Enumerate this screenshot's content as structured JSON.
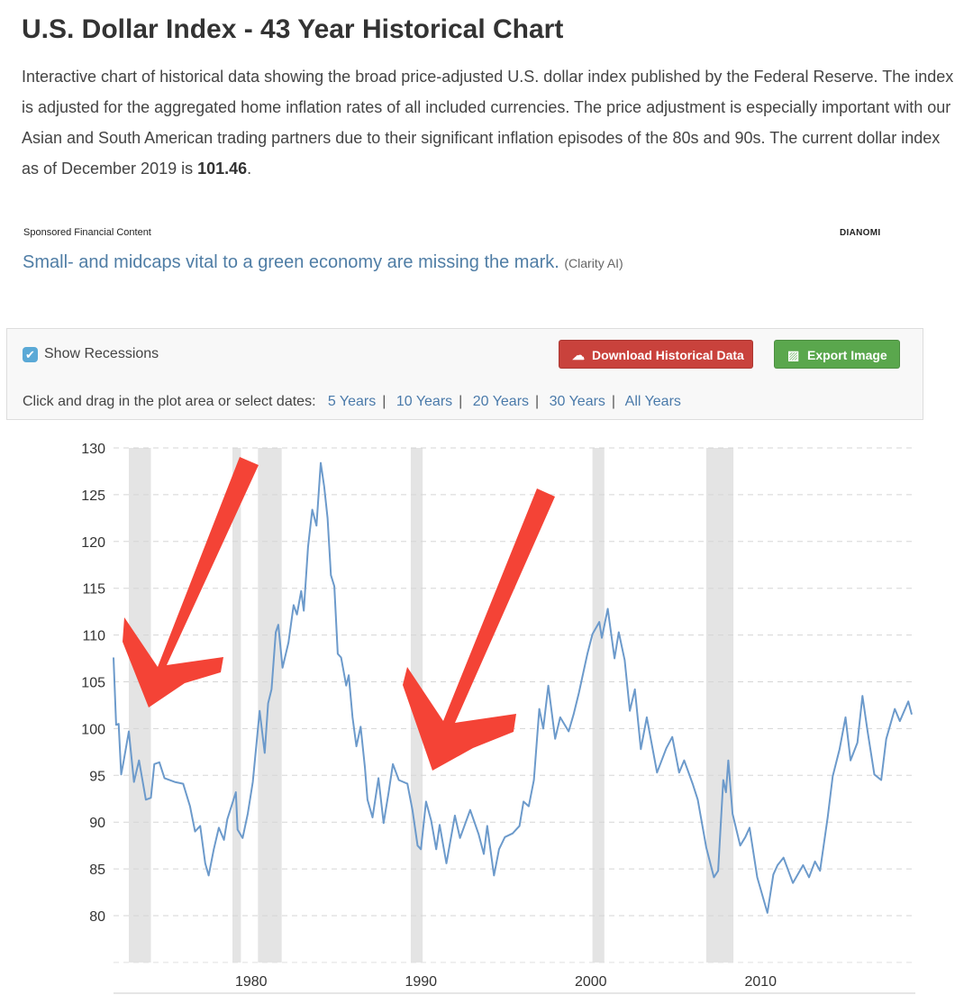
{
  "title": "U.S. Dollar Index - 43 Year Historical Chart",
  "intro": "Interactive chart of historical data showing the broad price-adjusted U.S. dollar index published by the Federal Reserve. The index is adjusted for the aggregated home inflation rates of all included currencies. The price adjustment is especially important with our Asian and South American trading partners due to their significant inflation episodes of the 80s and 90s. The current dollar index as of December 2019 is ",
  "current_value": "101.46",
  "intro_end": ".",
  "sponsored": {
    "label": "Sponsored Financial Content",
    "brand": "Dianomi",
    "headline": "Small- and midcaps vital to a green economy are missing the mark.",
    "source": "(Clarity AI)"
  },
  "controls": {
    "show_recessions": "Show Recessions",
    "show_recessions_checked": true,
    "download": "Download Historical Data",
    "export": "Export Image",
    "range_prompt": "Click and drag in the plot area or select dates:",
    "ranges": [
      "5 Years",
      "10 Years",
      "20 Years",
      "30 Years",
      "All Years"
    ]
  },
  "colors": {
    "line": "#6c9acb",
    "recession": "#e4e4e4",
    "arrow": "#f44336",
    "download": "#c9423c",
    "export": "#5aa74d"
  },
  "chart_data": {
    "type": "line",
    "title": "",
    "xlabel": "",
    "ylabel": "",
    "ylim": [
      75,
      130
    ],
    "xlim": [
      1973,
      2020
    ],
    "yticks": [
      80,
      85,
      90,
      95,
      100,
      105,
      110,
      115,
      120,
      125,
      130
    ],
    "xticks": [
      1980,
      1990,
      2000,
      2010
    ],
    "grid": "horizontal dashed",
    "recessions": [
      [
        1973.9,
        1975.2
      ],
      [
        1980.0,
        1980.5
      ],
      [
        1981.5,
        1982.9
      ],
      [
        1990.5,
        1991.2
      ],
      [
        2001.2,
        2001.9
      ],
      [
        2007.9,
        2009.5
      ]
    ],
    "series": [
      {
        "name": "U.S. Dollar Index",
        "points": [
          [
            1973.0,
            107.6
          ],
          [
            1973.15,
            100.4
          ],
          [
            1973.3,
            100.5
          ],
          [
            1973.45,
            95.1
          ],
          [
            1973.6,
            96.6
          ],
          [
            1973.9,
            99.7
          ],
          [
            1974.2,
            94.3
          ],
          [
            1974.5,
            96.6
          ],
          [
            1974.9,
            92.4
          ],
          [
            1975.2,
            92.6
          ],
          [
            1975.4,
            96.2
          ],
          [
            1975.7,
            96.4
          ],
          [
            1976.0,
            94.7
          ],
          [
            1976.6,
            94.3
          ],
          [
            1977.1,
            94.1
          ],
          [
            1977.5,
            91.7
          ],
          [
            1977.8,
            89.0
          ],
          [
            1978.1,
            89.6
          ],
          [
            1978.4,
            85.6
          ],
          [
            1978.6,
            84.3
          ],
          [
            1978.9,
            87.1
          ],
          [
            1979.2,
            89.4
          ],
          [
            1979.5,
            88.1
          ],
          [
            1979.7,
            90.3
          ],
          [
            1980.2,
            93.2
          ],
          [
            1980.3,
            89.2
          ],
          [
            1980.6,
            88.3
          ],
          [
            1980.9,
            90.9
          ],
          [
            1981.2,
            94.3
          ],
          [
            1981.6,
            101.9
          ],
          [
            1981.9,
            97.4
          ],
          [
            1982.1,
            102.7
          ],
          [
            1982.3,
            104.2
          ],
          [
            1982.55,
            110.3
          ],
          [
            1982.7,
            111.1
          ],
          [
            1982.95,
            106.5
          ],
          [
            1983.3,
            109.2
          ],
          [
            1983.6,
            113.2
          ],
          [
            1983.8,
            112.2
          ],
          [
            1984.05,
            114.7
          ],
          [
            1984.2,
            112.6
          ],
          [
            1984.45,
            119.4
          ],
          [
            1984.7,
            123.4
          ],
          [
            1984.95,
            121.7
          ],
          [
            1985.2,
            128.4
          ],
          [
            1985.4,
            125.9
          ],
          [
            1985.6,
            122.5
          ],
          [
            1985.8,
            116.4
          ],
          [
            1986.0,
            115.2
          ],
          [
            1986.2,
            108.0
          ],
          [
            1986.4,
            107.6
          ],
          [
            1986.7,
            104.6
          ],
          [
            1986.85,
            105.7
          ],
          [
            1987.07,
            101.2
          ],
          [
            1987.3,
            98.1
          ],
          [
            1987.55,
            100.2
          ],
          [
            1987.8,
            95.9
          ],
          [
            1987.95,
            92.4
          ],
          [
            1988.25,
            90.5
          ],
          [
            1988.6,
            94.7
          ],
          [
            1988.9,
            89.9
          ],
          [
            1989.2,
            93.2
          ],
          [
            1989.45,
            96.2
          ],
          [
            1989.8,
            94.5
          ],
          [
            1990.3,
            94.1
          ],
          [
            1990.6,
            91.3
          ],
          [
            1990.9,
            87.5
          ],
          [
            1991.1,
            87.1
          ],
          [
            1991.4,
            92.2
          ],
          [
            1991.7,
            90.2
          ],
          [
            1992.0,
            87.1
          ],
          [
            1992.2,
            89.7
          ],
          [
            1992.6,
            85.6
          ],
          [
            1993.1,
            90.7
          ],
          [
            1993.4,
            88.3
          ],
          [
            1994.0,
            91.3
          ],
          [
            1994.5,
            88.7
          ],
          [
            1994.8,
            86.6
          ],
          [
            1995.0,
            89.6
          ],
          [
            1995.4,
            84.3
          ],
          [
            1995.7,
            87.1
          ],
          [
            1996.04,
            88.4
          ],
          [
            1996.5,
            88.8
          ],
          [
            1996.9,
            89.6
          ],
          [
            1997.14,
            92.2
          ],
          [
            1997.45,
            91.7
          ],
          [
            1997.75,
            94.5
          ],
          [
            1998.07,
            102.1
          ],
          [
            1998.3,
            100.0
          ],
          [
            1998.6,
            104.6
          ],
          [
            1999.0,
            98.9
          ],
          [
            1999.3,
            101.2
          ],
          [
            1999.8,
            99.7
          ],
          [
            2000.1,
            101.6
          ],
          [
            2000.4,
            103.8
          ],
          [
            2000.9,
            108.0
          ],
          [
            2001.2,
            110.1
          ],
          [
            2001.6,
            111.4
          ],
          [
            2001.75,
            109.7
          ],
          [
            2002.1,
            112.8
          ],
          [
            2002.5,
            107.5
          ],
          [
            2002.75,
            110.3
          ],
          [
            2003.1,
            107.3
          ],
          [
            2003.4,
            101.9
          ],
          [
            2003.7,
            104.2
          ],
          [
            2004.05,
            97.8
          ],
          [
            2004.4,
            101.2
          ],
          [
            2005.0,
            95.3
          ],
          [
            2005.55,
            97.9
          ],
          [
            2005.9,
            99.1
          ],
          [
            2006.3,
            95.3
          ],
          [
            2006.6,
            96.6
          ],
          [
            2007.1,
            94.1
          ],
          [
            2007.4,
            92.4
          ],
          [
            2007.9,
            87.3
          ],
          [
            2008.35,
            84.1
          ],
          [
            2008.6,
            84.8
          ],
          [
            2008.9,
            94.5
          ],
          [
            2009.06,
            93.2
          ],
          [
            2009.2,
            96.6
          ],
          [
            2009.45,
            90.9
          ],
          [
            2009.9,
            87.5
          ],
          [
            2010.2,
            88.4
          ],
          [
            2010.45,
            89.4
          ],
          [
            2010.9,
            84.1
          ],
          [
            2011.5,
            80.3
          ],
          [
            2011.85,
            84.4
          ],
          [
            2012.1,
            85.4
          ],
          [
            2012.45,
            86.2
          ],
          [
            2013.0,
            83.5
          ],
          [
            2013.6,
            85.4
          ],
          [
            2013.95,
            84.1
          ],
          [
            2014.3,
            85.8
          ],
          [
            2014.6,
            84.8
          ],
          [
            2015.05,
            90.5
          ],
          [
            2015.35,
            94.9
          ],
          [
            2015.75,
            97.8
          ],
          [
            2016.1,
            101.2
          ],
          [
            2016.4,
            96.6
          ],
          [
            2016.8,
            98.5
          ],
          [
            2017.1,
            103.5
          ],
          [
            2017.4,
            99.7
          ],
          [
            2017.8,
            95.1
          ],
          [
            2018.2,
            94.5
          ],
          [
            2018.5,
            98.9
          ],
          [
            2019.0,
            102.1
          ],
          [
            2019.3,
            100.8
          ],
          [
            2019.8,
            102.9
          ],
          [
            2020.0,
            101.5
          ]
        ]
      }
    ]
  }
}
